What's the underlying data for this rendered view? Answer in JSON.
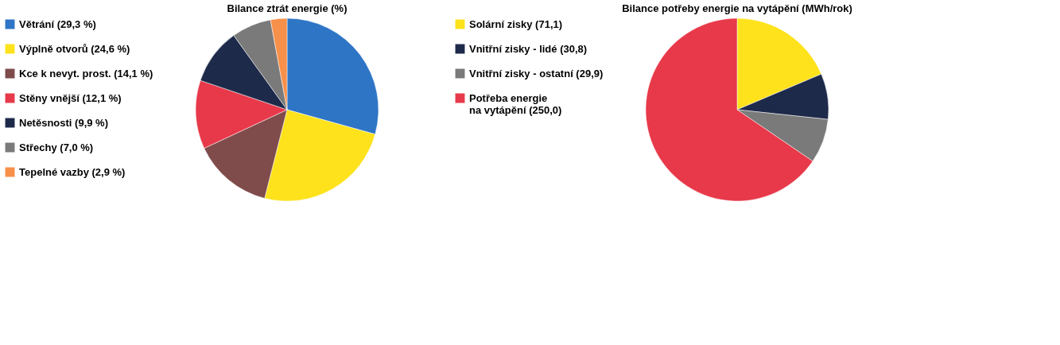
{
  "chart_data": [
    {
      "type": "pie",
      "title": "Bilance ztrát energie (%)",
      "legend": "left",
      "categories": [
        "Větrání (29,3 %)",
        "Výplně otvorů (24,6 %)",
        "Kce k nevyt. prost. (14,1 %)",
        "Stěny vnější (12,1 %)",
        "Netěsnosti (9,9 %)",
        "Střechy (7,0 %)",
        "Tepelné vazby (2,9 %)"
      ],
      "values": [
        29.3,
        24.6,
        14.1,
        12.1,
        9.9,
        7.0,
        2.9
      ],
      "colors": [
        "#2e75c6",
        "#fde21c",
        "#7f4b4b",
        "#e8394a",
        "#1e2a4a",
        "#7a7a7a",
        "#f7904a"
      ]
    },
    {
      "type": "pie",
      "title": "Bilance potřeby energie na vytápění (MWh/rok)",
      "legend": "left",
      "categories": [
        "Solární zisky (71,1)",
        "Vnitřní zisky - lidé (30,8)",
        "Vnitřní zisky - ostatní (29,9)",
        "Potřeba energie\nna vytápění (250,0)"
      ],
      "values": [
        71.1,
        30.8,
        29.9,
        250.0
      ],
      "colors": [
        "#fde21c",
        "#1e2a4a",
        "#7a7a7a",
        "#e8394a"
      ]
    }
  ]
}
